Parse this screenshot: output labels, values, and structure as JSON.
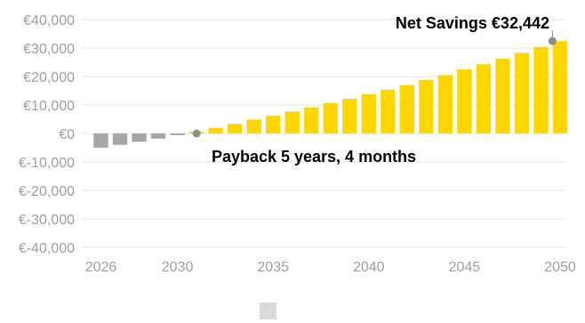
{
  "chart_data": {
    "type": "bar",
    "title": "",
    "xlabel": "",
    "ylabel": "",
    "x": [
      2026,
      2027,
      2028,
      2029,
      2030,
      2031,
      2032,
      2033,
      2034,
      2035,
      2036,
      2037,
      2038,
      2039,
      2040,
      2041,
      2042,
      2043,
      2044,
      2045,
      2046,
      2047,
      2048,
      2049,
      2050
    ],
    "values": [
      -5000,
      -4000,
      -2900,
      -1800,
      -600,
      600,
      2000,
      3400,
      4900,
      6200,
      7700,
      9200,
      10700,
      12200,
      13800,
      15400,
      17000,
      18800,
      20500,
      22500,
      24300,
      26300,
      28300,
      30400,
      32442
    ],
    "ylim": [
      -40000,
      40000
    ],
    "xlim": [
      2026,
      2050
    ],
    "y_ticks": [
      "€40,000",
      "€30,000",
      "€20,000",
      "€10,000",
      "€0",
      "€-10,000",
      "€-20,000",
      "€-30,000",
      "€-40,000"
    ],
    "y_tick_values": [
      40000,
      30000,
      20000,
      10000,
      0,
      -10000,
      -20000,
      -30000,
      -40000
    ],
    "x_ticks": [
      "2026",
      "2030",
      "2035",
      "2040",
      "2045",
      "2050"
    ],
    "x_tick_values": [
      2026,
      2030,
      2035,
      2040,
      2045,
      2050
    ],
    "grid": true,
    "colors": {
      "negative": "#a6a6a6",
      "positive": "#ffd700",
      "marker": "#8c8c8c",
      "grid": "#e3e3e3",
      "legend_swatch": "#d9d9d9"
    },
    "annotations": [
      {
        "text": "Net Savings €32,442",
        "x": 2049.6,
        "y": 32442
      },
      {
        "text": "Payback 5 years, 4 months",
        "x": 2031.0,
        "y": 0
      }
    ]
  }
}
